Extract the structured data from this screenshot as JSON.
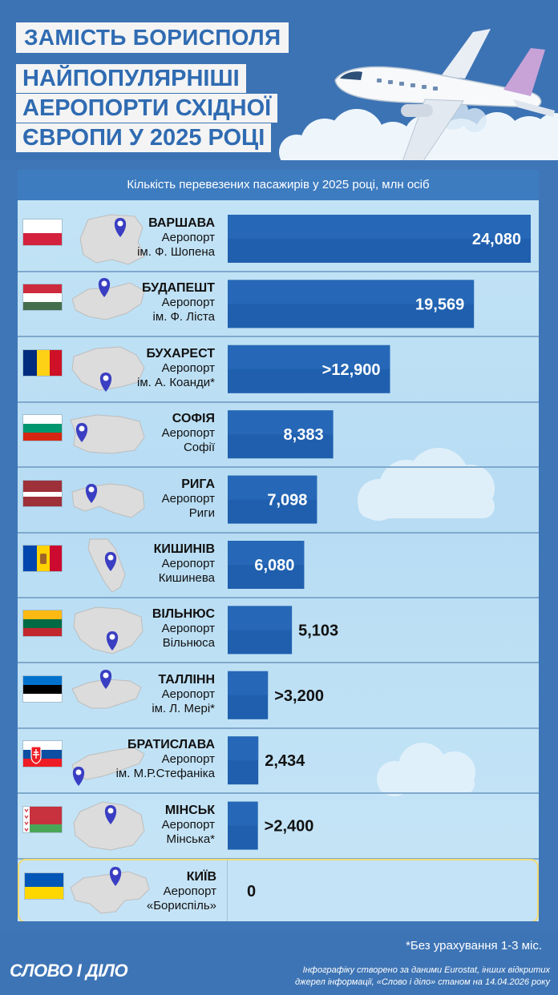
{
  "header": {
    "kicker": "ЗАМІСТЬ БОРИСПОЛЯ",
    "title_lines": [
      "НАЙПОПУЛЯРНІШІ",
      "АЕРОПОРТИ СХІДНОЇ",
      "ЄВРОПИ У 2025 РОЦІ"
    ]
  },
  "chart_data": {
    "type": "bar",
    "orientation": "horizontal",
    "title": "Кількість перевезених пасажирів у 2025 році, млн осіб",
    "colors": {
      "bar": "#1f5fae",
      "bar_light": "#2f74c4",
      "label_inside": "#ffffff",
      "label_outside": "#111111"
    },
    "categories": [
      "ВАРШАВА",
      "БУДАПЕШТ",
      "БУХАРЕСТ",
      "СОФІЯ",
      "РИГА",
      "КИШИНІВ",
      "ВІЛЬНЮС",
      "ТАЛЛІНН",
      "БРАТИСЛАВА",
      "МІНСЬК",
      "КИЇВ"
    ],
    "values": [
      24.08,
      19.569,
      12.9,
      8.383,
      7.098,
      6.08,
      5.103,
      3.2,
      2.434,
      2.4,
      0
    ],
    "value_labels": [
      "24,080",
      "19,569",
      ">12,900",
      "8,383",
      "7,098",
      "6,080",
      "5,103",
      ">3,200",
      "2,434",
      ">2,400",
      "0"
    ],
    "airports": [
      [
        "Аеропорт",
        "ім. Ф. Шопена"
      ],
      [
        "Аеропорт",
        "ім. Ф. Ліста"
      ],
      [
        "Аеропорт",
        "ім. А. Коанди*"
      ],
      [
        "Аеропорт",
        "Софії"
      ],
      [
        "Аеропорт",
        "Риги"
      ],
      [
        "Аеропорт",
        "Кишинева"
      ],
      [
        "Аеропорт",
        "Вільнюса"
      ],
      [
        "Аеропорт",
        "ім. Л. Мері*"
      ],
      [
        "Аеропорт",
        "ім. М.Р.Стефаніка"
      ],
      [
        "Аеропорт",
        "Мінська*"
      ],
      [
        "Аеропорт",
        "«Бориспіль»"
      ]
    ],
    "flags": [
      "poland",
      "hungary",
      "romania",
      "bulgaria",
      "latvia",
      "moldova",
      "lithuania",
      "estonia",
      "slovakia",
      "belarus",
      "ukraine"
    ],
    "maps": [
      "poland-map",
      "hungary-map",
      "romania-map",
      "bulgaria-map",
      "latvia-map",
      "moldova-map",
      "lithuania-map",
      "estonia-map",
      "slovakia-map",
      "belarus-map",
      "ukraine-map"
    ],
    "xlim": [
      0,
      24.08
    ]
  },
  "footer": {
    "footnote": "*Без урахування 1-3 міс.",
    "credit": "Інфографіку створено за даними Eurostat, інших відкритих джерел інформації, «Слово і діло» станом на 14.04.2026 року",
    "brand": "СЛОВО І ДІЛО"
  }
}
